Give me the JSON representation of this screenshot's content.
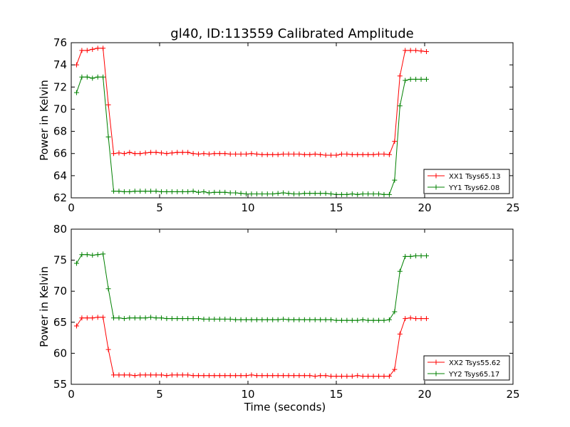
{
  "figure": {
    "title": "gl40, ID:113559 Calibrated Amplitude"
  },
  "chart_data": [
    {
      "type": "line",
      "xlabel": "",
      "ylabel": "Power in Kelvin",
      "xlim": [
        0,
        25
      ],
      "ylim": [
        62,
        76
      ],
      "xticks": [
        0,
        5,
        10,
        15,
        20,
        25
      ],
      "yticks": [
        62,
        64,
        66,
        68,
        70,
        72,
        74,
        76
      ],
      "grid": false,
      "legend_position": "lower-right",
      "x": [
        0.3,
        0.6,
        0.9,
        1.2,
        1.5,
        1.8,
        2.1,
        2.4,
        2.7,
        3.0,
        3.3,
        3.6,
        3.9,
        4.2,
        4.5,
        4.8,
        5.1,
        5.4,
        5.7,
        6.0,
        6.3,
        6.6,
        6.9,
        7.2,
        7.5,
        7.8,
        8.1,
        8.4,
        8.7,
        9.0,
        9.3,
        9.6,
        9.9,
        10.2,
        10.5,
        10.8,
        11.1,
        11.4,
        11.7,
        12.0,
        12.3,
        12.6,
        12.9,
        13.2,
        13.5,
        13.8,
        14.1,
        14.4,
        14.7,
        15.0,
        15.3,
        15.6,
        15.9,
        16.2,
        16.5,
        16.8,
        17.1,
        17.4,
        17.7,
        18.0,
        18.3,
        18.6,
        18.9,
        19.2,
        19.5,
        19.8,
        20.1
      ],
      "series": [
        {
          "name": "XX1 Tsys65.13",
          "color": "#ff0000",
          "values": [
            74.0,
            75.3,
            75.3,
            75.4,
            75.5,
            75.5,
            70.4,
            66.0,
            66.05,
            66.0,
            66.1,
            66.0,
            66.0,
            66.05,
            66.1,
            66.1,
            66.05,
            66.0,
            66.05,
            66.1,
            66.1,
            66.1,
            66.0,
            65.95,
            66.0,
            65.95,
            66.0,
            66.0,
            66.0,
            65.95,
            65.95,
            65.95,
            65.95,
            66.0,
            65.95,
            65.9,
            65.9,
            65.9,
            65.9,
            65.95,
            65.95,
            65.95,
            65.95,
            65.9,
            65.9,
            65.95,
            65.9,
            65.85,
            65.85,
            65.85,
            65.95,
            65.95,
            65.9,
            65.9,
            65.9,
            65.9,
            65.9,
            65.95,
            65.95,
            65.9,
            67.1,
            73.0,
            75.3,
            75.3,
            75.3,
            75.25,
            75.2
          ]
        },
        {
          "name": "YY1 Tsys62.08",
          "color": "#008000",
          "values": [
            71.5,
            72.9,
            72.9,
            72.8,
            72.9,
            72.9,
            67.5,
            62.6,
            62.6,
            62.55,
            62.55,
            62.6,
            62.6,
            62.6,
            62.6,
            62.6,
            62.55,
            62.55,
            62.55,
            62.55,
            62.55,
            62.55,
            62.6,
            62.5,
            62.55,
            62.45,
            62.5,
            62.5,
            62.5,
            62.45,
            62.45,
            62.4,
            62.35,
            62.35,
            62.35,
            62.35,
            62.35,
            62.35,
            62.4,
            62.45,
            62.4,
            62.35,
            62.35,
            62.4,
            62.4,
            62.4,
            62.4,
            62.4,
            62.35,
            62.3,
            62.3,
            62.3,
            62.35,
            62.3,
            62.35,
            62.35,
            62.35,
            62.35,
            62.3,
            62.3,
            63.6,
            70.3,
            72.6,
            72.7,
            72.7,
            72.7,
            72.7
          ]
        }
      ]
    },
    {
      "type": "line",
      "xlabel": "Time (seconds)",
      "ylabel": "Power in Kelvin",
      "xlim": [
        0,
        25
      ],
      "ylim": [
        55,
        80
      ],
      "xticks": [
        0,
        5,
        10,
        15,
        20,
        25
      ],
      "yticks": [
        55,
        60,
        65,
        70,
        75,
        80
      ],
      "grid": false,
      "legend_position": "lower-right",
      "x": [
        0.3,
        0.6,
        0.9,
        1.2,
        1.5,
        1.8,
        2.1,
        2.4,
        2.7,
        3.0,
        3.3,
        3.6,
        3.9,
        4.2,
        4.5,
        4.8,
        5.1,
        5.4,
        5.7,
        6.0,
        6.3,
        6.6,
        6.9,
        7.2,
        7.5,
        7.8,
        8.1,
        8.4,
        8.7,
        9.0,
        9.3,
        9.6,
        9.9,
        10.2,
        10.5,
        10.8,
        11.1,
        11.4,
        11.7,
        12.0,
        12.3,
        12.6,
        12.9,
        13.2,
        13.5,
        13.8,
        14.1,
        14.4,
        14.7,
        15.0,
        15.3,
        15.6,
        15.9,
        16.2,
        16.5,
        16.8,
        17.1,
        17.4,
        17.7,
        18.0,
        18.3,
        18.6,
        18.9,
        19.2,
        19.5,
        19.8,
        20.1
      ],
      "series": [
        {
          "name": "XX2 Tsys55.62",
          "color": "#ff0000",
          "values": [
            64.4,
            65.7,
            65.7,
            65.7,
            65.8,
            65.8,
            60.6,
            56.5,
            56.5,
            56.5,
            56.5,
            56.4,
            56.5,
            56.5,
            56.5,
            56.5,
            56.5,
            56.4,
            56.5,
            56.5,
            56.5,
            56.5,
            56.4,
            56.4,
            56.4,
            56.4,
            56.4,
            56.4,
            56.4,
            56.4,
            56.4,
            56.4,
            56.4,
            56.5,
            56.4,
            56.4,
            56.4,
            56.4,
            56.4,
            56.4,
            56.4,
            56.4,
            56.4,
            56.4,
            56.4,
            56.3,
            56.4,
            56.4,
            56.3,
            56.3,
            56.3,
            56.3,
            56.3,
            56.4,
            56.3,
            56.3,
            56.3,
            56.3,
            56.3,
            56.3,
            57.4,
            63.1,
            65.6,
            65.7,
            65.6,
            65.6,
            65.6
          ]
        },
        {
          "name": "YY2 Tsys65.17",
          "color": "#008000",
          "values": [
            74.5,
            75.9,
            75.9,
            75.8,
            75.9,
            76.0,
            70.4,
            65.7,
            65.7,
            65.6,
            65.7,
            65.7,
            65.7,
            65.7,
            65.8,
            65.7,
            65.7,
            65.6,
            65.6,
            65.6,
            65.6,
            65.6,
            65.6,
            65.6,
            65.5,
            65.5,
            65.5,
            65.5,
            65.5,
            65.5,
            65.4,
            65.4,
            65.4,
            65.4,
            65.4,
            65.4,
            65.4,
            65.4,
            65.4,
            65.5,
            65.4,
            65.4,
            65.4,
            65.4,
            65.4,
            65.4,
            65.4,
            65.4,
            65.4,
            65.3,
            65.3,
            65.3,
            65.3,
            65.3,
            65.4,
            65.3,
            65.3,
            65.3,
            65.3,
            65.4,
            66.7,
            73.2,
            75.6,
            75.6,
            75.7,
            75.7,
            75.7
          ]
        }
      ]
    }
  ]
}
